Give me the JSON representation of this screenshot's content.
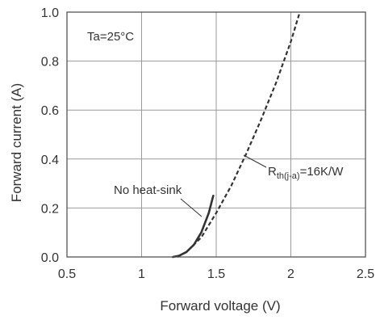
{
  "chart_data": {
    "type": "line",
    "xlabel": "Forward voltage  (V)",
    "ylabel": "Forward current  (A)",
    "xlim": [
      0.5,
      2.5
    ],
    "ylim": [
      0.0,
      1.0
    ],
    "x_ticks": [
      0.5,
      1,
      1.5,
      2,
      2.5
    ],
    "x_tick_labels": [
      "0.5",
      "1",
      "1.5",
      "2",
      "2.5"
    ],
    "y_ticks": [
      0.0,
      0.2,
      0.4,
      0.6,
      0.8,
      1.0
    ],
    "y_tick_labels": [
      "0.0",
      "0.2",
      "0.4",
      "0.6",
      "0.8",
      "1.0"
    ],
    "grid": true,
    "annotations": {
      "temperature": "Ta=25°C",
      "no_heat_sink": "No heat-sink",
      "rth_main": "R",
      "rth_sub": "th(j-a)",
      "rth_value": "=16K/W"
    },
    "series": [
      {
        "name": "No heat-sink",
        "style": "solid",
        "color": "#333333",
        "points": [
          [
            1.21,
            0.0
          ],
          [
            1.25,
            0.005
          ],
          [
            1.3,
            0.02
          ],
          [
            1.35,
            0.05
          ],
          [
            1.4,
            0.1
          ],
          [
            1.45,
            0.18
          ],
          [
            1.48,
            0.25
          ]
        ]
      },
      {
        "name": "Rth(j-a)=16K/W",
        "style": "dashed",
        "color": "#333333",
        "points": [
          [
            1.24,
            0.0
          ],
          [
            1.3,
            0.02
          ],
          [
            1.4,
            0.08
          ],
          [
            1.5,
            0.18
          ],
          [
            1.6,
            0.29
          ],
          [
            1.7,
            0.42
          ],
          [
            1.8,
            0.56
          ],
          [
            1.9,
            0.71
          ],
          [
            2.0,
            0.88
          ],
          [
            2.06,
            1.0
          ]
        ]
      }
    ]
  }
}
